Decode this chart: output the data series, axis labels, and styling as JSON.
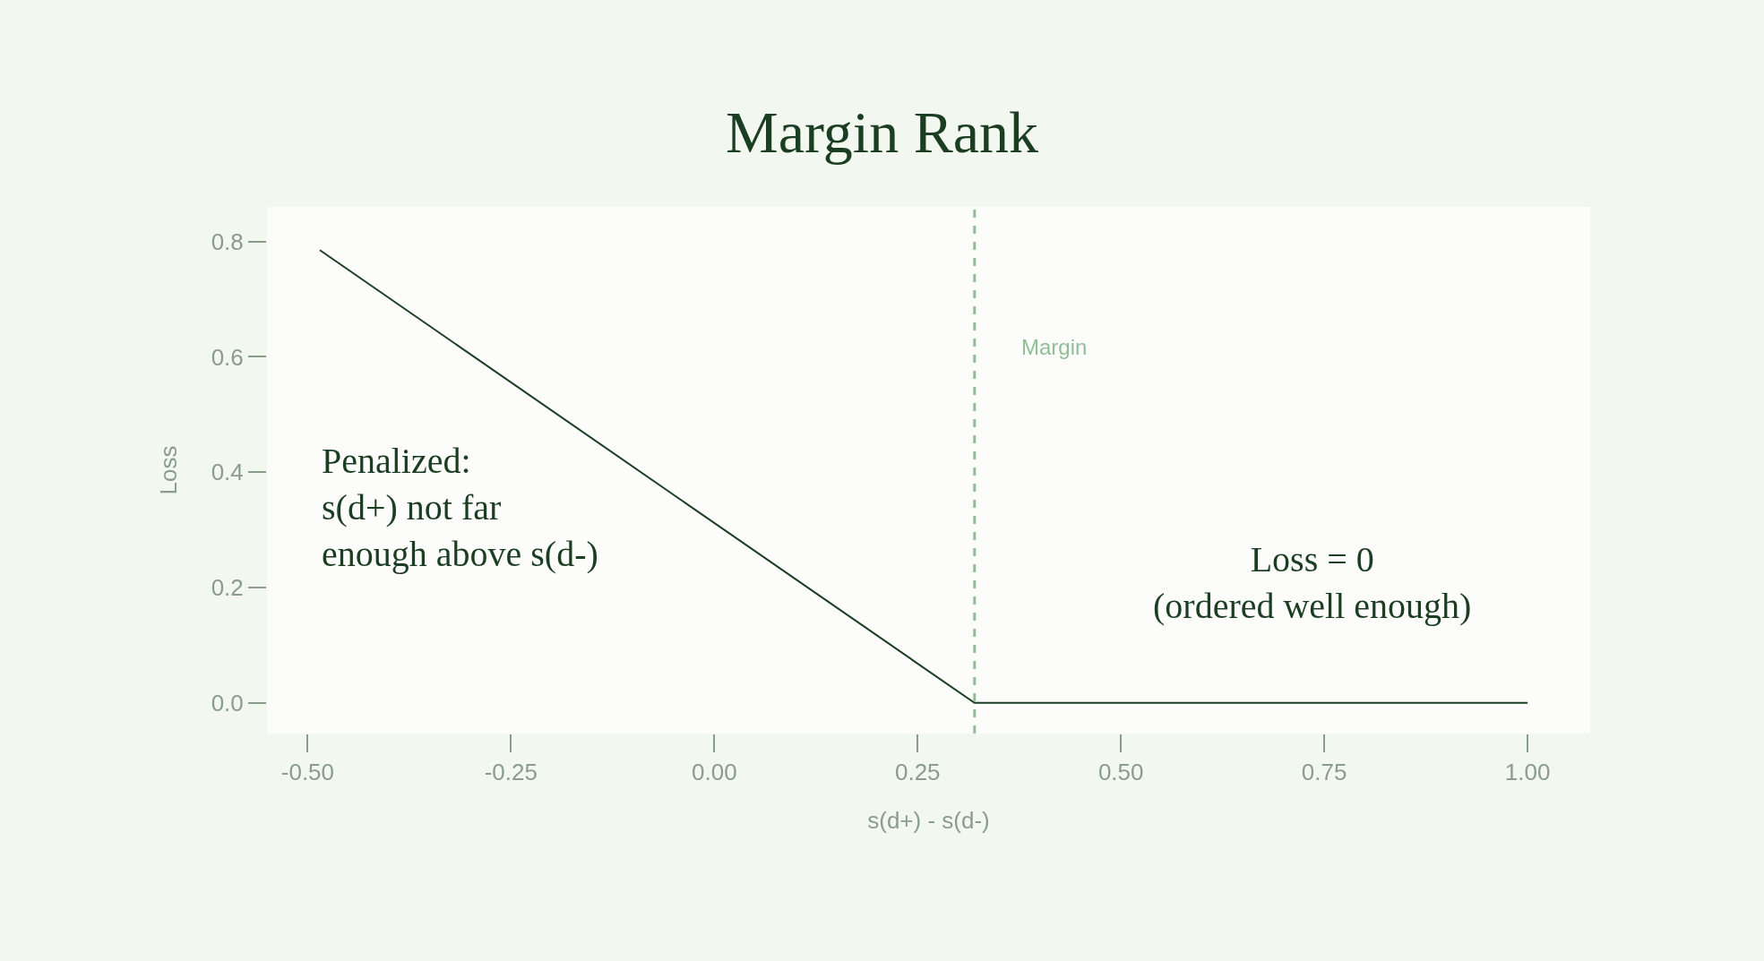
{
  "chart_data": {
    "type": "line",
    "title": "Margin Rank",
    "xlabel": "s(d+) - s(d-)",
    "ylabel": "Loss",
    "x": [
      -0.485,
      0.32,
      1.0
    ],
    "series": [
      {
        "color": "#1b3d22",
        "values": [
          0.785,
          0.0,
          0.0
        ]
      }
    ],
    "xlim": [
      -0.55,
      1.077
    ],
    "xticks": [
      {
        "value": -0.5,
        "label": "-0.50"
      },
      {
        "value": -0.25,
        "label": "-0.25"
      },
      {
        "value": 0,
        "label": "0.00"
      },
      0.25,
      {
        "value": 0.5,
        "label": "0.50"
      },
      0.75,
      {
        "value": 1,
        "label": "1.00"
      }
    ],
    "ylim": [
      -0.053,
      0.86
    ],
    "yticks": [
      {
        "value": 0,
        "label": "0.0"
      },
      0.2,
      0.4,
      0.6,
      0.8
    ],
    "ref_lines": [
      {
        "axis": "x",
        "value": 0.32,
        "label": "Margin",
        "color": "#8fbf96",
        "line_style": "dashed"
      }
    ],
    "annotations": [
      "Penalized:\ns(d+) not far\nenough above s(d-)",
      "Loss = 0\n(ordered well enough)"
    ],
    "marker": "none",
    "line_style": "solid"
  }
}
